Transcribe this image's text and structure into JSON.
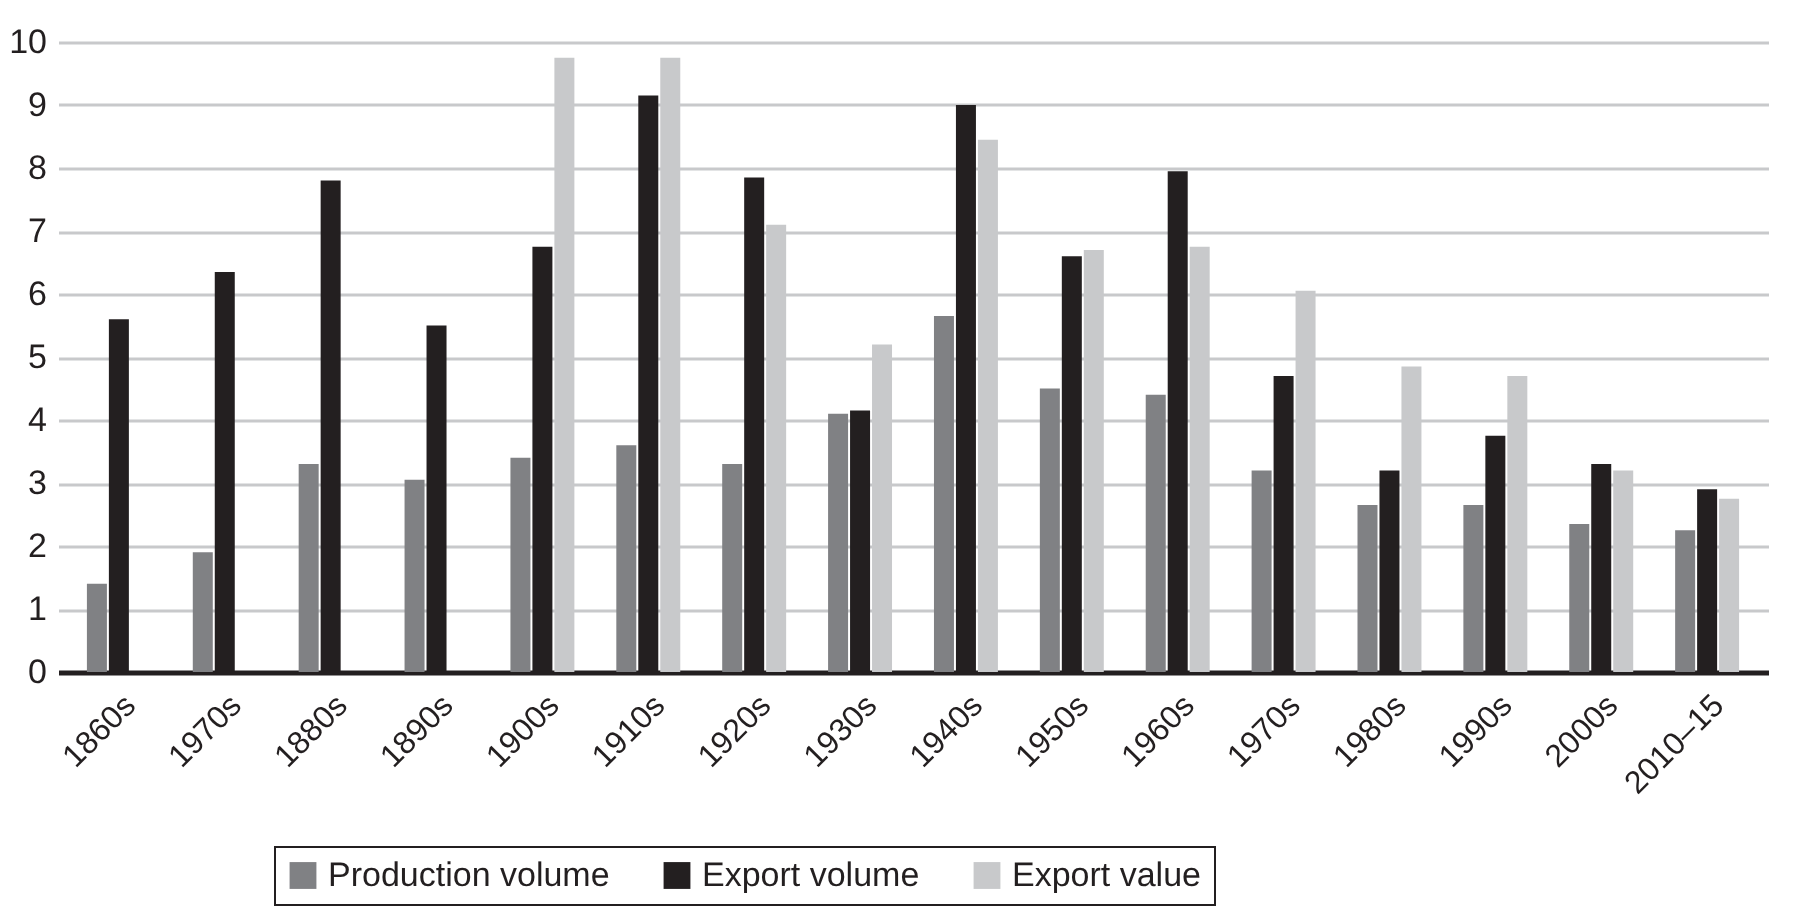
{
  "chart_data": {
    "type": "bar",
    "categories": [
      "1860s",
      "1970s",
      "1880s",
      "1890s",
      "1900s",
      "1910s",
      "1920s",
      "1930s",
      "1940s",
      "1950s",
      "1960s",
      "1970s",
      "1980s",
      "1990s",
      "2000s",
      "2010–15"
    ],
    "series": [
      {
        "name": "Production volume",
        "color": "#808184",
        "values": [
          1.4,
          1.9,
          3.3,
          3.05,
          3.4,
          3.6,
          3.3,
          4.1,
          5.65,
          4.5,
          4.4,
          3.2,
          2.65,
          2.65,
          2.35,
          2.25
        ]
      },
      {
        "name": "Export volume",
        "color": "#231f20",
        "values": [
          5.6,
          6.35,
          7.8,
          5.5,
          6.75,
          9.15,
          7.85,
          4.15,
          9.0,
          6.6,
          7.95,
          4.7,
          3.2,
          3.75,
          3.3,
          2.9
        ]
      },
      {
        "name": "Export value",
        "color": "#c8c9cb",
        "values": [
          null,
          null,
          null,
          null,
          9.75,
          9.75,
          7.1,
          5.2,
          8.45,
          6.7,
          6.75,
          6.05,
          4.85,
          4.7,
          3.2,
          2.75
        ]
      }
    ],
    "ylim": [
      0,
      10
    ],
    "yticks": [
      0,
      1,
      2,
      3,
      4,
      5,
      6,
      7,
      8,
      9,
      10
    ],
    "grid": "y",
    "legend": "bottom"
  }
}
